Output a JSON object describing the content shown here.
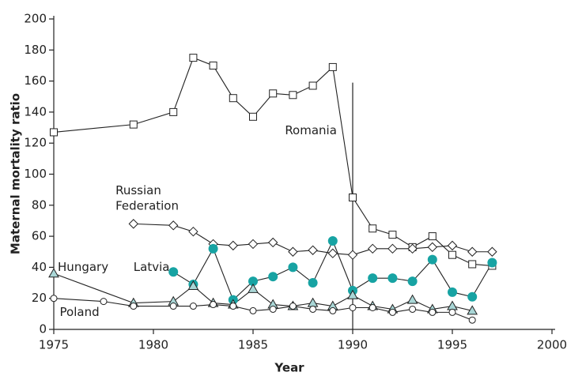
{
  "chart_data": {
    "type": "line",
    "x_label": "Year",
    "y_label": "Maternal mortality ratio",
    "xlim": [
      1975,
      2000
    ],
    "xticks": [
      1975,
      1980,
      1985,
      1990,
      1995,
      2000
    ],
    "ylim": [
      0,
      200
    ],
    "yticks": [
      0,
      20,
      40,
      60,
      80,
      100,
      120,
      140,
      160,
      180,
      200
    ],
    "grid": false,
    "vertical_line": {
      "x": 1990,
      "y": [
        0,
        159
      ]
    },
    "series": [
      {
        "name": "Romania",
        "marker": "square",
        "color": "#ffffff",
        "x": [
          1975,
          1979,
          1981,
          1982,
          1983,
          1984,
          1985,
          1986,
          1987,
          1988,
          1989,
          1990,
          1991,
          1992,
          1993,
          1994,
          1995,
          1996,
          1997
        ],
        "values": [
          127,
          132,
          140,
          175,
          170,
          149,
          137,
          152,
          151,
          157,
          169,
          85,
          65,
          61,
          53,
          60,
          48,
          42,
          41
        ]
      },
      {
        "name": "Russian Federation",
        "marker": "diamond",
        "color": "#ffffff",
        "x": [
          1979,
          1981,
          1982,
          1983,
          1984,
          1985,
          1986,
          1987,
          1988,
          1989,
          1990,
          1991,
          1992,
          1993,
          1994,
          1995,
          1996,
          1997
        ],
        "values": [
          68,
          67,
          63,
          55,
          54,
          55,
          56,
          50,
          51,
          49,
          48,
          52,
          52,
          52,
          53,
          54,
          50,
          50
        ]
      },
      {
        "name": "Latvia",
        "marker": "circle",
        "color": "#17a3a3",
        "x": [
          1981,
          1982,
          1983,
          1984,
          1985,
          1986,
          1987,
          1988,
          1989,
          1990,
          1991,
          1992,
          1993,
          1994,
          1995,
          1996,
          1997
        ],
        "values": [
          37,
          29,
          52,
          19,
          31,
          34,
          40,
          30,
          57,
          25,
          33,
          33,
          31,
          45,
          24,
          21,
          43
        ]
      },
      {
        "name": "Hungary",
        "marker": "triangle",
        "color": "#a9d6d6",
        "x": [
          1975,
          1979,
          1981,
          1982,
          1983,
          1984,
          1985,
          1986,
          1987,
          1988,
          1989,
          1990,
          1991,
          1992,
          1993,
          1994,
          1995,
          1996
        ],
        "values": [
          36,
          17,
          18,
          28,
          17,
          16,
          26,
          16,
          15,
          17,
          15,
          22,
          15,
          13,
          19,
          13,
          15,
          12
        ]
      },
      {
        "name": "Poland",
        "marker": "circle",
        "color": "#ffffff",
        "x": [
          1975,
          1977.5,
          1979,
          1981,
          1982,
          1983,
          1984,
          1985,
          1986,
          1987,
          1988,
          1989,
          1990,
          1991,
          1992,
          1993,
          1994,
          1995,
          1996
        ],
        "values": [
          20,
          18,
          15,
          15,
          15,
          16,
          15,
          12,
          13,
          15,
          13,
          12,
          14,
          14,
          11,
          13,
          11,
          11,
          6
        ]
      }
    ]
  }
}
